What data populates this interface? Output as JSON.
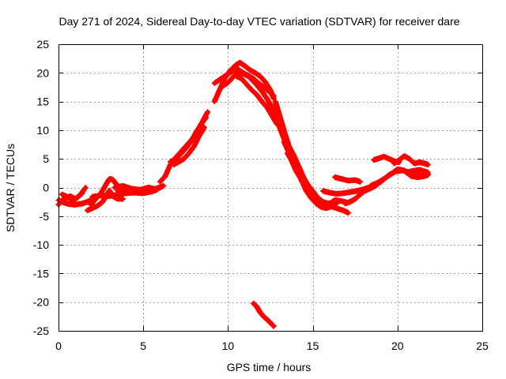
{
  "chart_data": {
    "type": "scatter",
    "title": "Day 271 of 2024, Sidereal Day-to-day VTEC variation (SDTVAR) for receiver dare",
    "xlabel": "GPS time / hours",
    "ylabel": "SDTVAR / TECUs",
    "xlim": [
      0,
      25
    ],
    "ylim": [
      -25,
      25
    ],
    "x_ticks": [
      0,
      5,
      10,
      15,
      20,
      25
    ],
    "y_ticks": [
      -25,
      -20,
      -15,
      -10,
      -5,
      0,
      5,
      10,
      15,
      20,
      25
    ],
    "grid": true,
    "marker": "plus",
    "series": [
      {
        "name": "SDTVAR",
        "color": "#ff0000",
        "traces": [
          {
            "x": [
              0.0,
              0.3,
              0.6,
              1.0,
              1.4,
              1.7,
              1.9
            ],
            "y": [
              -2.2,
              -2.6,
              -2.9,
              -3.0,
              -2.8,
              -2.5,
              -2.2
            ]
          },
          {
            "x": [
              0.0,
              0.3,
              0.7,
              1.0,
              1.3,
              1.6
            ],
            "y": [
              -3.0,
              -2.0,
              -1.5,
              -2.0,
              -1.2,
              0.0
            ]
          },
          {
            "x": [
              0.2,
              0.5,
              0.8,
              1.1,
              1.4
            ],
            "y": [
              -1.2,
              -1.6,
              -2.2,
              -1.8,
              -1.0
            ]
          },
          {
            "x": [
              1.7,
              2.0,
              2.3,
              2.6,
              2.8,
              3.0,
              3.2,
              3.5,
              3.8
            ],
            "y": [
              -4.0,
              -3.6,
              -3.2,
              -2.5,
              -1.5,
              -0.5,
              -1.5,
              -2.0,
              -2.0
            ]
          },
          {
            "x": [
              1.9,
              2.2,
              2.5,
              2.8,
              3.0,
              3.2,
              3.4,
              3.6,
              3.9
            ],
            "y": [
              -3.0,
              -2.0,
              -1.0,
              0.5,
              1.5,
              1.4,
              0.6,
              0.0,
              -0.3
            ]
          },
          {
            "x": [
              2.0,
              2.5,
              3.0,
              3.5,
              4.0,
              4.5,
              5.0,
              5.5,
              5.8
            ],
            "y": [
              -1.6,
              -1.4,
              -1.5,
              -1.2,
              -1.0,
              -0.9,
              -1.0,
              -0.7,
              -0.4
            ]
          },
          {
            "x": [
              3.3,
              3.8,
              4.3,
              4.8,
              5.3,
              5.8,
              6.2
            ],
            "y": [
              0.0,
              0.3,
              -0.2,
              -0.4,
              0.0,
              -0.3,
              0.3
            ]
          },
          {
            "x": [
              3.5,
              4.0,
              4.5,
              5.0,
              5.5,
              6.0
            ],
            "y": [
              -0.6,
              -0.9,
              -0.6,
              -0.3,
              -0.5,
              0.1
            ]
          },
          {
            "x": [
              6.0,
              6.3,
              6.6,
              7.0,
              7.3,
              7.6,
              7.9,
              8.2,
              8.5,
              8.8
            ],
            "y": [
              1.0,
              2.0,
              4.0,
              5.5,
              6.5,
              7.5,
              8.5,
              10.0,
              11.5,
              13.2
            ]
          },
          {
            "x": [
              6.6,
              6.9,
              7.2,
              7.5,
              7.8,
              8.1,
              8.4,
              8.7
            ],
            "y": [
              4.5,
              5.0,
              5.8,
              6.8,
              8.0,
              9.5,
              11.0,
              12.2
            ]
          },
          {
            "x": [
              6.8,
              7.1,
              7.4,
              7.7,
              8.0,
              8.3,
              8.6
            ],
            "y": [
              4.0,
              4.5,
              5.0,
              6.0,
              7.2,
              9.0,
              10.5
            ]
          },
          {
            "x": [
              9.2,
              9.5,
              9.8,
              10.1,
              10.4,
              10.7,
              11.0,
              11.3,
              11.6,
              11.9,
              12.2,
              12.5,
              12.7
            ],
            "y": [
              15.0,
              17.0,
              19.0,
              20.3,
              21.2,
              21.8,
              21.2,
              20.5,
              20.0,
              19.4,
              18.4,
              17.0,
              15.5
            ]
          },
          {
            "x": [
              9.2,
              9.6,
              10.0,
              10.3,
              10.6,
              10.9,
              11.2,
              11.5,
              11.8,
              12.1,
              12.4,
              12.7
            ],
            "y": [
              18.2,
              19.0,
              19.8,
              20.4,
              20.6,
              20.0,
              19.5,
              19.0,
              18.2,
              17.5,
              16.8,
              16.0
            ]
          },
          {
            "x": [
              9.6,
              10.0,
              10.4,
              10.8,
              11.2,
              11.6,
              12.0,
              12.3,
              12.6,
              12.9,
              13.1
            ],
            "y": [
              17.5,
              18.3,
              19.6,
              20.0,
              19.4,
              18.2,
              16.8,
              15.5,
              14.0,
              12.0,
              10.5
            ]
          },
          {
            "x": [
              10.5,
              10.8,
              11.1,
              11.4,
              11.7,
              12.0,
              12.3,
              12.6,
              12.9
            ],
            "y": [
              19.4,
              19.0,
              18.0,
              17.0,
              16.2,
              15.0,
              14.0,
              12.5,
              11.0
            ]
          },
          {
            "x": [
              12.8,
              13.0,
              13.2,
              13.4,
              13.6,
              13.9,
              14.2,
              14.5,
              14.8,
              15.1,
              15.4,
              15.7,
              16.0,
              16.4,
              16.8,
              17.1
            ],
            "y": [
              15.0,
              13.0,
              11.0,
              9.0,
              7.2,
              5.5,
              3.5,
              1.5,
              0.0,
              -1.5,
              -2.5,
              -3.0,
              -3.2,
              -3.6,
              -4.0,
              -4.4
            ]
          },
          {
            "x": [
              12.8,
              13.1,
              13.4,
              13.7,
              14.0,
              14.3,
              14.6,
              14.9,
              15.2,
              15.5,
              15.8,
              16.1,
              16.4
            ],
            "y": [
              12.5,
              10.0,
              7.8,
              5.0,
              3.0,
              1.5,
              -0.5,
              -1.8,
              -2.8,
              -3.4,
              -3.6,
              -3.3,
              -2.8
            ]
          },
          {
            "x": [
              13.3,
              13.6,
              13.9,
              14.2,
              14.5,
              14.8,
              15.1,
              15.4,
              15.7,
              16.0,
              16.3,
              16.6,
              17.0
            ],
            "y": [
              8.0,
              6.0,
              4.0,
              2.0,
              0.5,
              -1.0,
              -2.2,
              -3.0,
              -3.3,
              -2.8,
              -2.2,
              -2.3,
              -2.6
            ]
          },
          {
            "x": [
              13.5,
              13.8,
              14.1,
              14.4,
              14.7,
              15.0,
              15.3,
              15.6,
              15.9,
              16.2
            ],
            "y": [
              6.0,
              4.5,
              3.5,
              2.0,
              0.5,
              -0.6,
              -1.8,
              -2.5,
              -2.8,
              -2.6
            ]
          },
          {
            "x": [
              15.6,
              16.0,
              16.4,
              16.8,
              17.2,
              17.6,
              18.0,
              18.3
            ],
            "y": [
              -0.6,
              -0.9,
              -1.1,
              -1.0,
              -0.8,
              -0.6,
              -0.3,
              0.0
            ]
          },
          {
            "x": [
              16.3,
              16.7,
              17.1,
              17.5,
              17.8
            ],
            "y": [
              1.8,
              1.5,
              1.2,
              1.3,
              1.0
            ]
          },
          {
            "x": [
              16.9,
              17.2,
              17.5,
              17.8,
              18.1,
              18.4
            ],
            "y": [
              -2.8,
              -2.5,
              -2.0,
              -1.2,
              -0.5,
              0.0
            ]
          },
          {
            "x": [
              17.9,
              18.3,
              18.7,
              19.1,
              19.5,
              19.9,
              20.3,
              20.7,
              21.1,
              21.5,
              21.8
            ],
            "y": [
              -0.8,
              -0.3,
              0.3,
              1.2,
              2.2,
              2.8,
              3.0,
              2.6,
              2.8,
              2.5,
              2.3
            ]
          },
          {
            "x": [
              18.4,
              18.8,
              19.2,
              19.6,
              20.0,
              20.4,
              20.8,
              21.2,
              21.6,
              21.8
            ],
            "y": [
              0.3,
              0.8,
              1.5,
              2.3,
              3.2,
              3.0,
              2.0,
              1.8,
              2.0,
              2.2
            ]
          },
          {
            "x": [
              18.6,
              18.9,
              19.2,
              19.5,
              19.8,
              20.1
            ],
            "y": [
              4.8,
              5.1,
              5.4,
              5.0,
              4.6,
              4.4
            ]
          },
          {
            "x": [
              19.8,
              20.1,
              20.4,
              20.7,
              21.0,
              21.3,
              21.6,
              21.8
            ],
            "y": [
              4.2,
              4.8,
              5.5,
              5.0,
              4.2,
              4.4,
              4.2,
              4.0
            ]
          },
          {
            "x": [
              20.5,
              20.9,
              21.3,
              21.6,
              21.8
            ],
            "y": [
              2.6,
              2.9,
              3.1,
              2.8,
              2.6
            ]
          },
          {
            "x": [
              11.5,
              11.7,
              11.9,
              12.1,
              12.3,
              12.5,
              12.7
            ],
            "y": [
              -20.2,
              -20.8,
              -21.8,
              -22.5,
              -23.0,
              -23.6,
              -24.2
            ]
          }
        ]
      }
    ]
  }
}
